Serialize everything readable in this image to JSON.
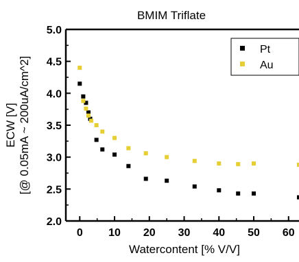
{
  "chart_data": {
    "type": "scatter",
    "title": "BMIM Triflate",
    "xlabel": "Watercontent [% V/V]",
    "ylabel_line1": "ECW [V]",
    "ylabel_line2": "[@ 0.05mA ~ 200uA/cm^2]",
    "xlim": [
      -4,
      63
    ],
    "ylim": [
      2.0,
      5.0
    ],
    "xticks": [
      0,
      10,
      20,
      30,
      40,
      50,
      60
    ],
    "xtick_labels": [
      "0",
      "10",
      "20",
      "30",
      "40",
      "50",
      "60"
    ],
    "yticks": [
      2.0,
      2.5,
      3.0,
      3.5,
      4.0,
      4.5,
      5.0
    ],
    "ytick_labels": [
      "2.0",
      "2.5",
      "3.0",
      "3.5",
      "4.0",
      "4.5",
      "5.0"
    ],
    "legend_position": "top-right",
    "series": [
      {
        "name": "Pt",
        "color": "#000000",
        "marker": "square",
        "x": [
          0,
          1,
          1.8,
          2.5,
          3,
          4.8,
          6.5,
          10,
          14,
          19,
          25,
          33,
          40,
          45.5,
          50,
          63
        ],
        "y": [
          4.15,
          3.95,
          3.85,
          3.7,
          3.6,
          3.27,
          3.12,
          3.04,
          2.86,
          2.66,
          2.63,
          2.54,
          2.48,
          2.43,
          2.43,
          2.37
        ]
      },
      {
        "name": "Au",
        "color": "#E6CF35",
        "marker": "square",
        "x": [
          0,
          1,
          1.8,
          2.5,
          3.3,
          4.8,
          6.5,
          10,
          14,
          19,
          25,
          33,
          40,
          45.5,
          50,
          63
        ],
        "y": [
          4.4,
          3.88,
          3.76,
          3.65,
          3.57,
          3.5,
          3.4,
          3.3,
          3.14,
          3.06,
          3.0,
          2.94,
          2.9,
          2.89,
          2.9,
          2.88
        ]
      }
    ]
  }
}
